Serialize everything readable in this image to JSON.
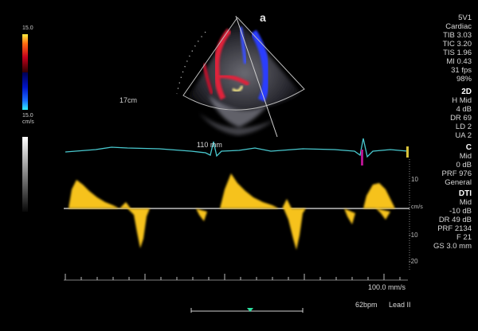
{
  "orientation_marker": "a",
  "colorbar": {
    "top_value": "15.0",
    "bottom_value": "15.0",
    "unit": "cm/s"
  },
  "depth_label": "17cm",
  "ecg_label": "110 mm",
  "right_panel": {
    "general": [
      "5V1",
      "Cardiac",
      "TIB 3.03",
      "TIC 3.20",
      "TIS 1.96",
      "MI 0.43",
      "31 fps",
      "98%"
    ],
    "section_2d": {
      "header": "2D",
      "items": [
        "H Mid",
        "4 dB",
        "DR 69",
        "LD 2",
        "UA 2"
      ]
    },
    "section_c": {
      "header": "C",
      "items": [
        "Mid",
        "0 dB",
        "PRF 976",
        "General"
      ]
    },
    "section_dti": {
      "header": "DTI",
      "items": [
        "Mid",
        "-10 dB",
        "DR 49 dB",
        "PRF 2134",
        "F 21",
        "GS 3.0 mm"
      ]
    }
  },
  "doppler_scale": {
    "ticks": [
      "10",
      "cm/s",
      "-10",
      "-20"
    ]
  },
  "sweep_speed": "100.0 mm/s",
  "heart_rate": "62bpm",
  "lead": "Lead II",
  "colors": {
    "ecg": "#49c9cf",
    "doppler": "#f6c21a",
    "flow_red": "#e0203a",
    "flow_blue": "#2a3cff",
    "marker": "#b4148f",
    "accent": "#2ee0a0"
  }
}
